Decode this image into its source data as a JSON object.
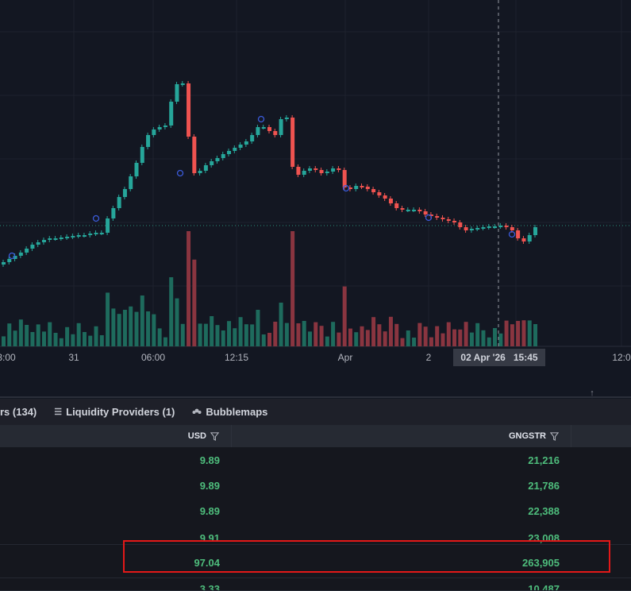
{
  "chart": {
    "time_axis": [
      "3:00",
      "31",
      "06:00",
      "12:15",
      "Apr",
      "2",
      "12:0"
    ],
    "crosshair": {
      "date": "02 Apr '26",
      "time": "15:45"
    },
    "colors": {
      "up": "#26a69a",
      "down": "#ef5350",
      "volume_up": "#1e6b5d",
      "volume_down": "#8a3540",
      "grid": "#1e222d",
      "price_line": "#2a8f7a"
    }
  },
  "tabs": [
    {
      "label": "rs (134)",
      "icon": ""
    },
    {
      "label": "Liquidity Providers (1)",
      "icon": "list-icon"
    },
    {
      "label": "Bubblemaps",
      "icon": "bubblemaps-icon"
    }
  ],
  "table": {
    "columns": [
      "USD",
      "GNGSTR"
    ],
    "rows": [
      {
        "usd": "9.89",
        "amount": "21,216"
      },
      {
        "usd": "9.89",
        "amount": "21,786"
      },
      {
        "usd": "9.89",
        "amount": "22,388"
      },
      {
        "usd": "9.91",
        "amount": "23,008"
      },
      {
        "usd": "97.04",
        "amount": "263,905"
      },
      {
        "usd": "3.33",
        "amount": "10,487"
      }
    ]
  }
}
